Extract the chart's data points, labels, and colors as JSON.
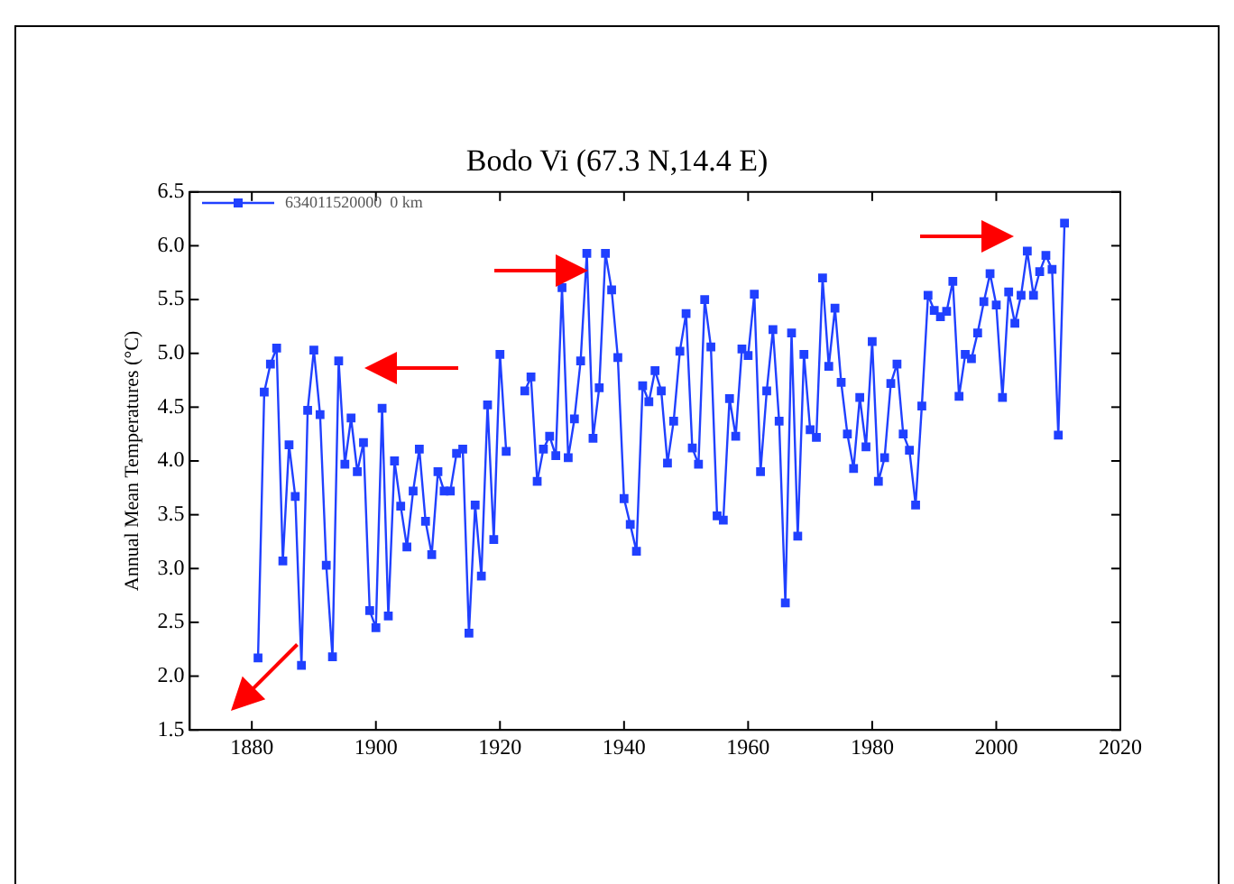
{
  "chart_data": {
    "type": "line",
    "title": "Bodo Vi (67.3 N,14.4 E)",
    "ylabel": "Annual Mean Temperatures (°C)",
    "x": [
      1881,
      1882,
      1883,
      1884,
      1885,
      1886,
      1887,
      1888,
      1889,
      1890,
      1891,
      1892,
      1893,
      1894,
      1895,
      1896,
      1897,
      1898,
      1899,
      1900,
      1901,
      1902,
      1903,
      1904,
      1905,
      1906,
      1907,
      1908,
      1909,
      1910,
      1911,
      1912,
      1913,
      1914,
      1915,
      1916,
      1917,
      1918,
      1919,
      1920,
      1921,
      1922,
      1923,
      1924,
      1925,
      1926,
      1927,
      1928,
      1929,
      1930,
      1931,
      1932,
      1933,
      1934,
      1935,
      1936,
      1937,
      1938,
      1939,
      1940,
      1941,
      1942,
      1943,
      1944,
      1945,
      1946,
      1947,
      1948,
      1949,
      1950,
      1951,
      1952,
      1953,
      1954,
      1955,
      1956,
      1957,
      1958,
      1959,
      1960,
      1961,
      1962,
      1963,
      1964,
      1965,
      1966,
      1967,
      1968,
      1969,
      1970,
      1971,
      1972,
      1973,
      1974,
      1975,
      1976,
      1977,
      1978,
      1979,
      1980,
      1981,
      1982,
      1983,
      1984,
      1985,
      1986,
      1987,
      1988,
      1989,
      1990,
      1991,
      1992,
      1993,
      1994,
      1995,
      1996,
      1997,
      1998,
      1999,
      2000,
      2001,
      2002,
      2003,
      2004,
      2005,
      2006,
      2007,
      2008,
      2009,
      2010,
      2011
    ],
    "series": [
      {
        "name": "634011520000  0 km",
        "color": "#2040ff",
        "values": [
          2.17,
          4.64,
          4.9,
          5.05,
          3.07,
          4.15,
          3.67,
          2.1,
          4.47,
          5.03,
          4.43,
          3.03,
          2.18,
          4.93,
          3.97,
          4.4,
          3.9,
          4.17,
          2.61,
          2.45,
          4.49,
          2.56,
          4.0,
          3.58,
          3.2,
          3.72,
          4.11,
          3.44,
          3.13,
          3.9,
          3.72,
          3.72,
          4.07,
          4.11,
          2.4,
          3.59,
          2.93,
          4.52,
          3.27,
          4.99,
          4.09,
          null,
          null,
          4.65,
          4.78,
          3.81,
          4.11,
          4.23,
          4.05,
          5.61,
          4.03,
          4.39,
          4.93,
          5.93,
          4.21,
          4.68,
          5.93,
          5.59,
          4.96,
          3.65,
          3.41,
          3.16,
          4.7,
          4.55,
          4.84,
          4.65,
          3.98,
          4.37,
          5.02,
          5.37,
          4.12,
          3.97,
          5.5,
          5.06,
          3.49,
          3.45,
          4.58,
          4.23,
          5.04,
          4.98,
          5.55,
          3.9,
          4.65,
          5.22,
          4.37,
          2.68,
          5.19,
          3.3,
          4.99,
          4.29,
          4.22,
          5.7,
          4.88,
          5.42,
          4.73,
          4.25,
          3.93,
          4.59,
          4.13,
          5.11,
          3.81,
          4.03,
          4.72,
          4.9,
          4.25,
          4.1,
          3.59,
          4.51,
          5.54,
          5.4,
          5.34,
          5.39,
          5.67,
          4.6,
          4.99,
          4.95,
          5.19,
          5.48,
          5.74,
          5.45,
          4.59,
          5.57,
          5.28,
          5.54,
          5.95,
          5.54,
          5.76,
          5.91,
          5.78,
          4.24,
          6.21
        ]
      }
    ],
    "xlim": [
      1870,
      2020
    ],
    "xticks": [
      1880,
      1900,
      1920,
      1940,
      1960,
      1980,
      2000,
      2020
    ],
    "ylim": [
      1.5,
      6.5
    ],
    "yticks": [
      {
        "value": 1.5,
        "label": "1.5"
      },
      {
        "value": 2,
        "label": "2.0"
      },
      {
        "value": 2.5,
        "label": "2.5"
      },
      {
        "value": 3,
        "label": "3.0"
      },
      {
        "value": 3.5,
        "label": "3.5"
      },
      {
        "value": 4,
        "label": "4.0"
      },
      {
        "value": 4.5,
        "label": "4.5"
      },
      {
        "value": 5,
        "label": "5.0"
      },
      {
        "value": 5.5,
        "label": "5.5"
      },
      {
        "value": 6,
        "label": "6.0"
      },
      {
        "value": 6.5,
        "label": "6.5"
      }
    ],
    "grid": false,
    "legend": "top left",
    "marker": "square",
    "line_style": "solid"
  }
}
